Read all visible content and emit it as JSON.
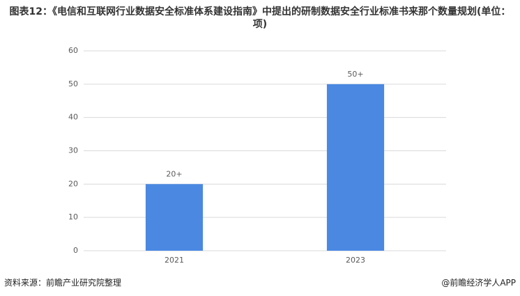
{
  "chart_data": {
    "type": "bar",
    "title": "图表12：《电信和互联网行业数据安全标准体系建设指南》中提出的研制数据安全行业标准书来那个数量规划(单位：项)",
    "categories": [
      "2021",
      "2023"
    ],
    "values": [
      20,
      50
    ],
    "value_labels": [
      "20+",
      "50+"
    ],
    "color": "#4a88e2",
    "ylim": [
      0,
      60
    ],
    "yticks": [
      0,
      10,
      20,
      30,
      40,
      50,
      60
    ],
    "grid": true,
    "source": "资料来源：前瞻产业研究院整理",
    "credit": "@前瞻经济学人APP"
  }
}
